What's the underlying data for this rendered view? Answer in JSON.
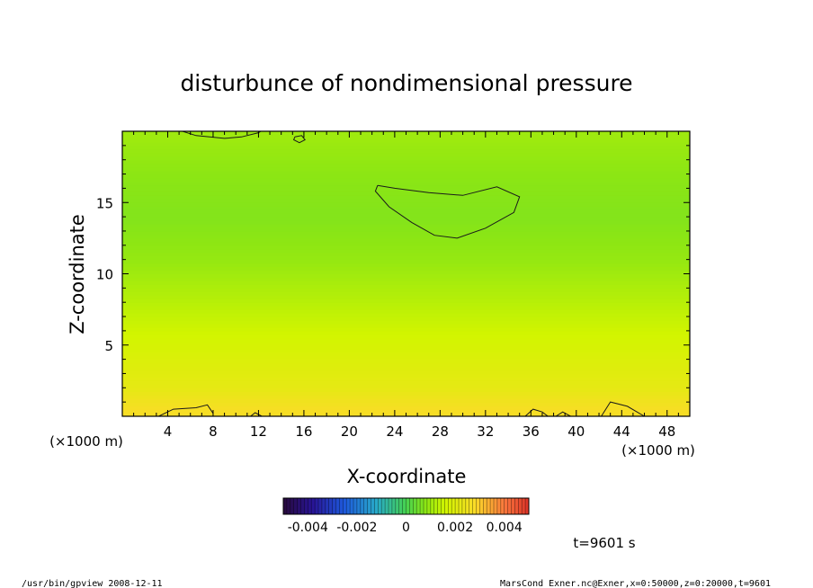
{
  "chart_data": {
    "type": "heatmap",
    "title": "disturbunce of nondimensional pressure",
    "xlabel": "X-coordinate",
    "ylabel": "Z-coordinate",
    "x_unit": "(×1000 m)",
    "z_unit": "(×1000 m)",
    "xlim": [
      0,
      50
    ],
    "ylim": [
      0,
      20
    ],
    "x_ticks": [
      4,
      8,
      12,
      16,
      20,
      24,
      28,
      32,
      36,
      40,
      44,
      48
    ],
    "y_ticks": [
      5,
      10,
      15
    ],
    "colorbar": {
      "range": [
        -0.005,
        0.005
      ],
      "tick_labels": [
        "-0.004",
        "-0.002",
        "0",
        "0.002",
        "0.004"
      ],
      "tick_values": [
        -0.004,
        -0.002,
        0,
        0.002,
        0.004
      ]
    },
    "field_description_bands": [
      {
        "z": 0.5,
        "value": 0.0027
      },
      {
        "z": 2,
        "value": 0.0022
      },
      {
        "z": 5,
        "value": 0.0017
      },
      {
        "z": 8,
        "value": 0.0013
      },
      {
        "z": 11,
        "value": 0.0009
      },
      {
        "z": 14,
        "value": 0.0007
      },
      {
        "z": 17,
        "value": 0.0008
      },
      {
        "z": 19.5,
        "value": 0.001
      }
    ],
    "contour_lines": [
      {
        "name": "upper-blob",
        "points": [
          [
            22.5,
            16.2
          ],
          [
            24,
            16.0
          ],
          [
            27,
            15.7
          ],
          [
            30,
            15.5
          ],
          [
            33,
            16.1
          ],
          [
            35,
            15.4
          ],
          [
            34.5,
            14.3
          ],
          [
            32,
            13.2
          ],
          [
            29.5,
            12.5
          ],
          [
            27.5,
            12.7
          ],
          [
            25.5,
            13.6
          ],
          [
            23.5,
            14.7
          ],
          [
            22.3,
            15.8
          ],
          [
            22.5,
            16.2
          ]
        ]
      },
      {
        "name": "top-left-edge",
        "points": [
          [
            5.3,
            20
          ],
          [
            6.5,
            19.7
          ],
          [
            9,
            19.5
          ],
          [
            10.5,
            19.6
          ],
          [
            12,
            19.9
          ],
          [
            12.2,
            20
          ]
        ]
      },
      {
        "name": "small-top-loop",
        "points": [
          [
            15.2,
            19.6
          ],
          [
            15.8,
            19.7
          ],
          [
            16.1,
            19.4
          ],
          [
            15.6,
            19.2
          ],
          [
            15.1,
            19.4
          ],
          [
            15.2,
            19.6
          ]
        ]
      },
      {
        "name": "bottom-1",
        "points": [
          [
            3.2,
            0
          ],
          [
            4.5,
            0.5
          ],
          [
            6.5,
            0.6
          ],
          [
            7.5,
            0.8
          ],
          [
            8,
            0.2
          ]
        ]
      },
      {
        "name": "bottom-2",
        "points": [
          [
            11.3,
            0
          ],
          [
            11.7,
            0.25
          ],
          [
            12.3,
            0
          ]
        ]
      },
      {
        "name": "bottom-3",
        "points": [
          [
            35.5,
            0
          ],
          [
            36.2,
            0.5
          ],
          [
            37,
            0.3
          ],
          [
            37.5,
            0
          ]
        ]
      },
      {
        "name": "bottom-4",
        "points": [
          [
            38.2,
            0
          ],
          [
            38.8,
            0.3
          ],
          [
            39.5,
            0
          ]
        ]
      },
      {
        "name": "bottom-5",
        "points": [
          [
            42.2,
            0
          ],
          [
            43,
            1.0
          ],
          [
            44.5,
            0.7
          ],
          [
            46,
            0
          ]
        ]
      }
    ],
    "grid": false
  },
  "time_label": "t=9601 s",
  "footer": {
    "left": "/usr/bin/gpview   2008-12-11",
    "right": "MarsCond_Exner.nc@Exner,x=0:50000,z=0:20000,t=9601"
  }
}
